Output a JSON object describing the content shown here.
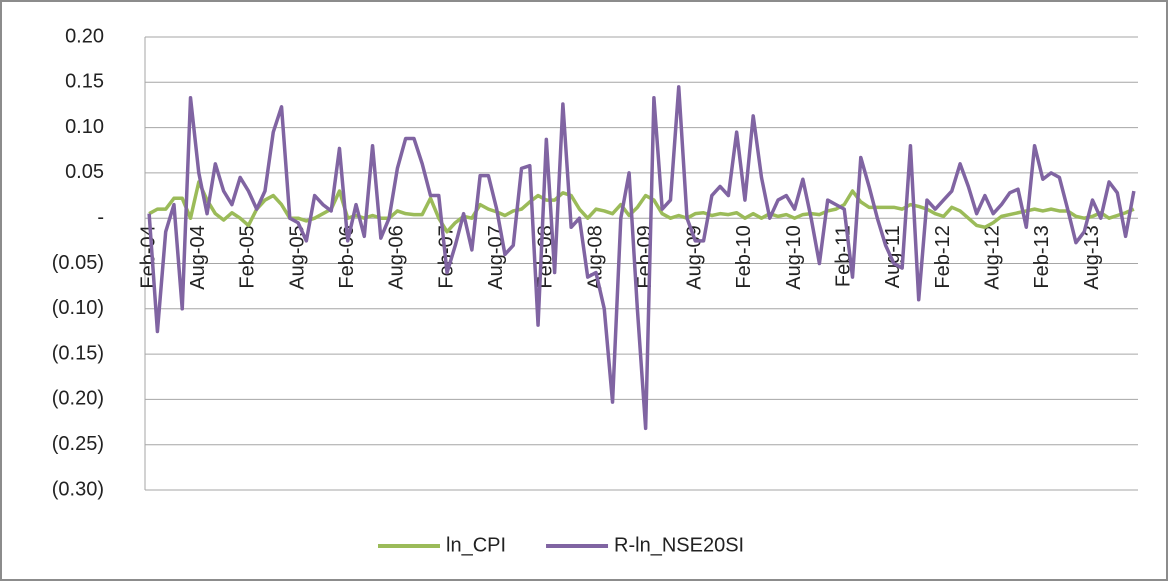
{
  "chart_data": {
    "type": "line",
    "categories": [
      "Feb-04",
      null,
      null,
      null,
      null,
      null,
      "Aug-04",
      null,
      null,
      null,
      null,
      null,
      "Feb-05",
      null,
      null,
      null,
      null,
      null,
      "Aug-05",
      null,
      null,
      null,
      null,
      null,
      "Feb-06",
      null,
      null,
      null,
      null,
      null,
      "Aug-06",
      null,
      null,
      null,
      null,
      null,
      "Feb-07",
      null,
      null,
      null,
      null,
      null,
      "Aug-07",
      null,
      null,
      null,
      null,
      null,
      "Feb-08",
      null,
      null,
      null,
      null,
      null,
      "Aug-08",
      null,
      null,
      null,
      null,
      null,
      "Feb-09",
      null,
      null,
      null,
      null,
      null,
      "Aug-09",
      null,
      null,
      null,
      null,
      null,
      "Feb-10",
      null,
      null,
      null,
      null,
      null,
      "Aug-10",
      null,
      null,
      null,
      null,
      null,
      "Feb-11",
      null,
      null,
      null,
      null,
      null,
      "Aug-11",
      null,
      null,
      null,
      null,
      null,
      "Feb-12",
      null,
      null,
      null,
      null,
      null,
      "Aug-12",
      null,
      null,
      null,
      null,
      null,
      "Feb-13",
      null,
      null,
      null,
      null,
      null,
      "Aug-13",
      null,
      null,
      null,
      null,
      null
    ],
    "series": [
      {
        "name": "ln_CPI",
        "color": "#9bbb59",
        "values": [
          0.005,
          0.01,
          0.01,
          0.022,
          0.022,
          0.0,
          0.04,
          0.02,
          0.005,
          -0.002,
          0.006,
          0.0,
          -0.008,
          0.01,
          0.02,
          0.025,
          0.015,
          0.0,
          0.0,
          -0.003,
          0.0,
          0.005,
          0.01,
          0.03,
          0.0,
          0.003,
          0.0,
          0.003,
          0.0,
          0.0,
          0.008,
          0.005,
          0.004,
          0.004,
          0.022,
          0.0,
          -0.015,
          -0.005,
          0.002,
          0.0,
          0.015,
          0.01,
          0.007,
          0.003,
          0.008,
          0.01,
          0.018,
          0.025,
          0.02,
          0.02,
          0.028,
          0.025,
          0.01,
          0.0,
          0.01,
          0.008,
          0.005,
          0.015,
          0.003,
          0.012,
          0.025,
          0.02,
          0.005,
          0.0,
          0.003,
          0.0,
          0.005,
          0.006,
          0.003,
          0.005,
          0.004,
          0.006,
          0.0,
          0.005,
          0.0,
          0.005,
          0.002,
          0.004,
          0.0,
          0.004,
          0.005,
          0.004,
          0.008,
          0.01,
          0.015,
          0.03,
          0.018,
          0.012,
          0.012,
          0.012,
          0.012,
          0.01,
          0.015,
          0.013,
          0.01,
          0.005,
          0.002,
          0.012,
          0.008,
          0.0,
          -0.008,
          -0.01,
          -0.005,
          0.002,
          0.004,
          0.006,
          0.008,
          0.01,
          0.008,
          0.01,
          0.008,
          0.008,
          0.002,
          0.0,
          0.002,
          0.006,
          0.0,
          0.003,
          0.006,
          0.01
        ]
      },
      {
        "name": "R-ln_NSE20SI",
        "color": "#8064a2",
        "values": [
          0.005,
          -0.125,
          -0.015,
          0.015,
          -0.1,
          0.133,
          0.05,
          0.005,
          0.06,
          0.03,
          0.015,
          0.045,
          0.03,
          0.01,
          0.03,
          0.095,
          0.123,
          0.0,
          -0.005,
          -0.025,
          0.025,
          0.015,
          0.008,
          0.077,
          -0.025,
          0.015,
          -0.02,
          0.08,
          -0.022,
          0.0,
          0.055,
          0.088,
          0.088,
          0.06,
          0.025,
          0.025,
          -0.06,
          -0.03,
          0.005,
          -0.035,
          0.047,
          0.047,
          0.01,
          -0.04,
          -0.03,
          0.055,
          0.058,
          -0.118,
          0.087,
          -0.06,
          0.126,
          -0.01,
          0.0,
          -0.065,
          -0.06,
          -0.1,
          -0.203,
          0.0,
          0.05,
          -0.1,
          -0.232,
          0.133,
          0.01,
          0.02,
          0.145,
          0.0,
          -0.025,
          -0.025,
          0.025,
          0.035,
          0.025,
          0.095,
          0.02,
          0.113,
          0.045,
          0.0,
          0.02,
          0.025,
          0.01,
          0.043,
          0.0,
          -0.05,
          0.02,
          0.015,
          0.01,
          -0.065,
          0.067,
          0.035,
          0.0,
          -0.03,
          -0.05,
          -0.055,
          0.08,
          -0.09,
          0.02,
          0.01,
          0.02,
          0.03,
          0.06,
          0.035,
          0.005,
          0.025,
          0.005,
          0.015,
          0.028,
          0.032,
          -0.01,
          0.08,
          0.043,
          0.05,
          0.045,
          0.01,
          -0.027,
          -0.015,
          0.02,
          0.0,
          0.04,
          0.028,
          -0.02,
          0.03
        ]
      }
    ],
    "ylim": [
      -0.3,
      0.2
    ],
    "yticks": [
      {
        "value": 0.2,
        "label": "0.20"
      },
      {
        "value": 0.15,
        "label": "0.15"
      },
      {
        "value": 0.1,
        "label": "0.10"
      },
      {
        "value": 0.05,
        "label": "0.05"
      },
      {
        "value": 0,
        "label": "-"
      },
      {
        "value": -0.05,
        "label": "(0.05)"
      },
      {
        "value": -0.1,
        "label": "(0.10)"
      },
      {
        "value": -0.15,
        "label": "(0.15)"
      },
      {
        "value": -0.2,
        "label": "(0.20)"
      },
      {
        "value": -0.25,
        "label": "(0.25)"
      },
      {
        "value": -0.3,
        "label": "(0.30)"
      }
    ],
    "grid": true,
    "legend": "bottom"
  }
}
